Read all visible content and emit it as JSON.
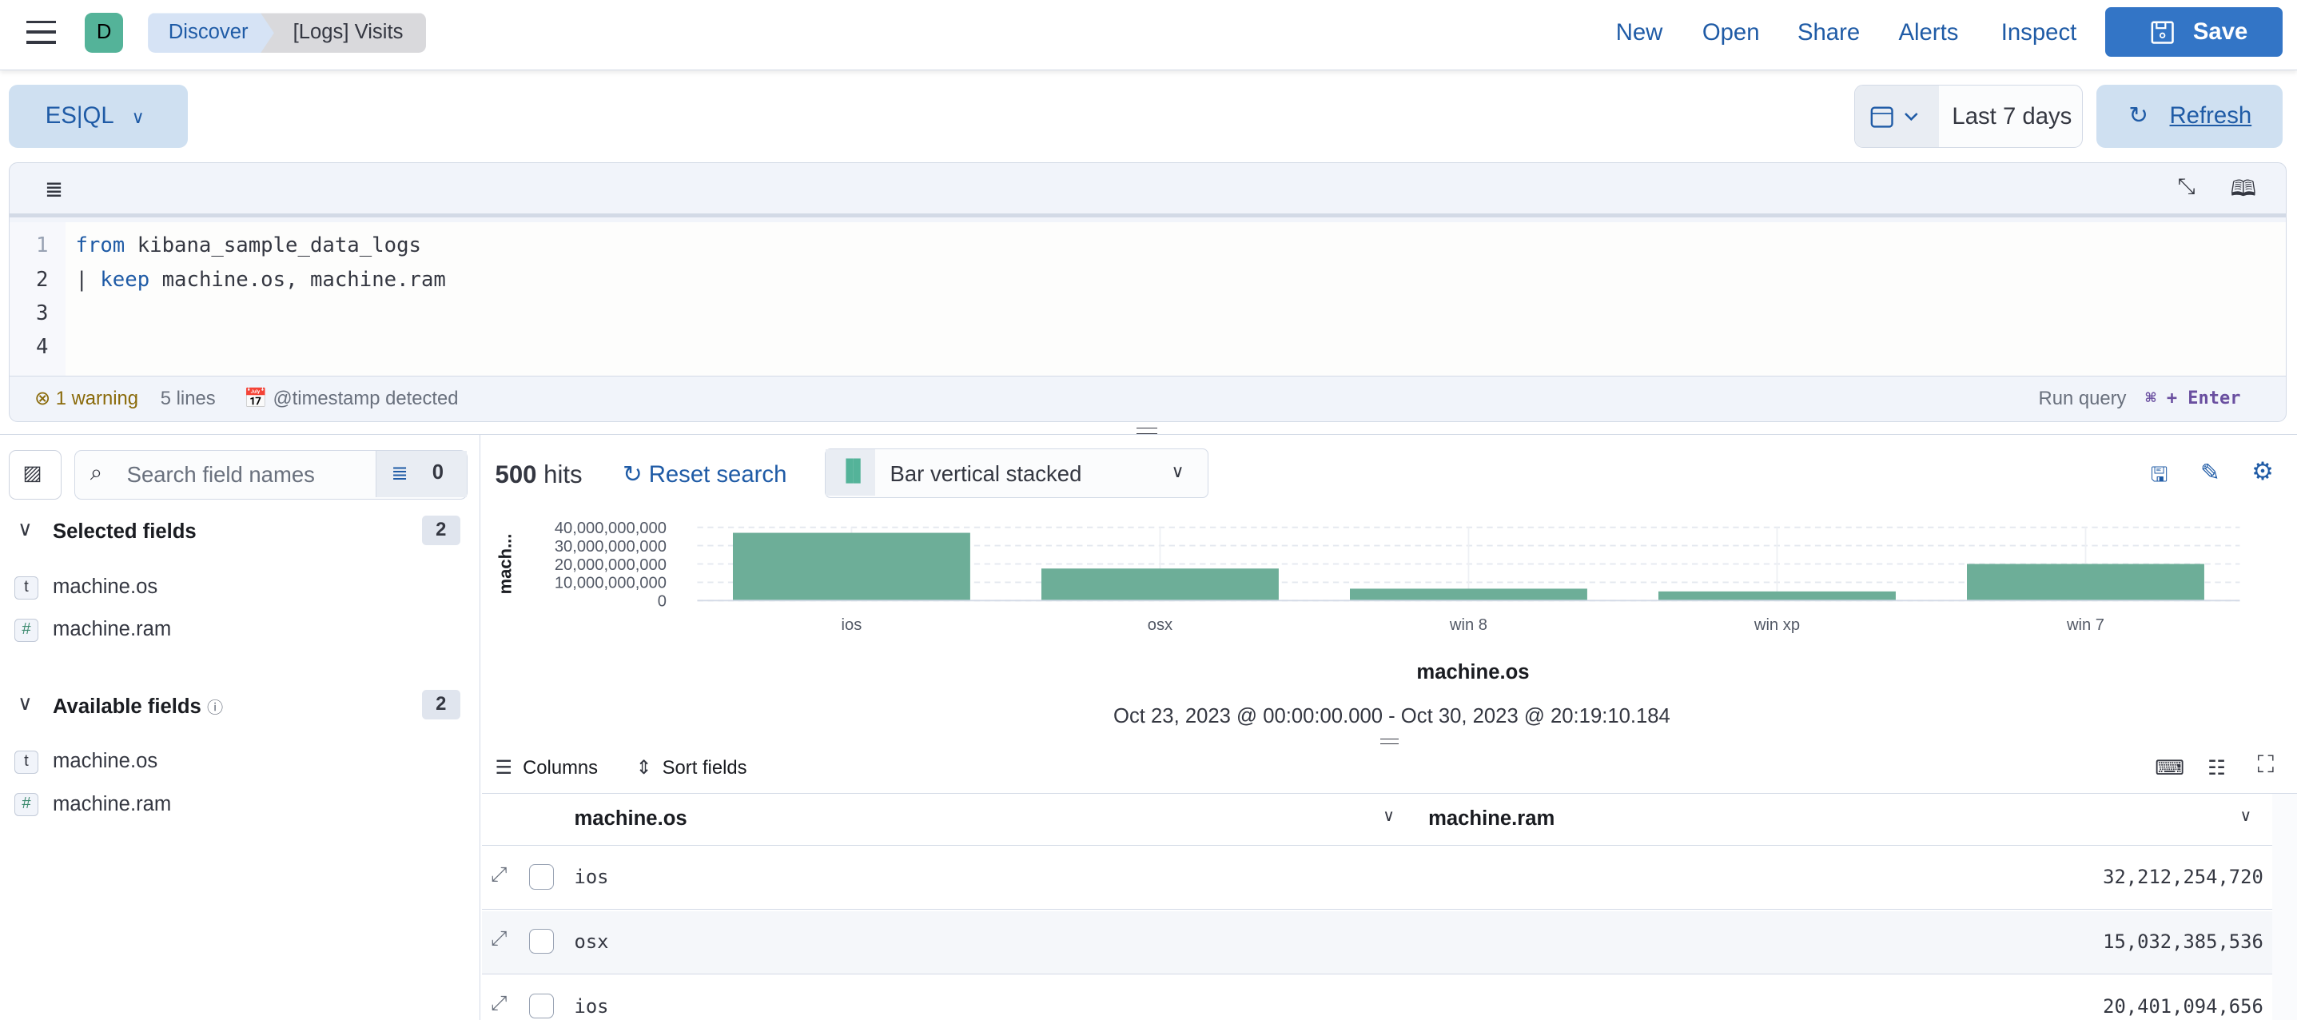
{
  "header": {
    "avatar_letter": "D",
    "breadcrumbs": [
      "Discover",
      "[Logs] Visits"
    ],
    "links": [
      "New",
      "Open",
      "Share",
      "Alerts",
      "Inspect"
    ],
    "save_label": "Save"
  },
  "query_bar": {
    "language": "ES|QL",
    "date_range": "Last 7 days",
    "refresh_label": "Refresh"
  },
  "editor": {
    "lines": [
      {
        "num": "1",
        "kw": "from",
        "rest": " kibana_sample_data_logs"
      },
      {
        "num": "2",
        "kw": "keep",
        "prefix": "| ",
        "rest": " machine.os, machine.ram"
      },
      {
        "num": "3"
      },
      {
        "num": "4"
      }
    ],
    "warning": "1 warning",
    "line_count": "5 lines",
    "timestamp": "@timestamp detected",
    "run_query": "Run query",
    "shortcut": "⌘ + Enter"
  },
  "sidebar": {
    "search_placeholder": "Search field names",
    "filter_count": "0",
    "selected": {
      "title": "Selected fields",
      "count": "2",
      "fields": [
        {
          "type": "t",
          "name": "machine.os"
        },
        {
          "type": "#",
          "name": "machine.ram"
        }
      ]
    },
    "available": {
      "title": "Available fields",
      "count": "2",
      "fields": [
        {
          "type": "t",
          "name": "machine.os"
        },
        {
          "type": "#",
          "name": "machine.ram"
        }
      ]
    }
  },
  "results": {
    "hits_count": "500",
    "hits_label": "hits",
    "reset_label": "Reset search",
    "chart_type": "Bar vertical stacked",
    "time_range": "Oct 23, 2023 @ 00:00:00.000 - Oct 30, 2023 @ 20:19:10.184"
  },
  "chart_data": {
    "type": "bar",
    "categories": [
      "ios",
      "osx",
      "win 8",
      "win xp",
      "win 7"
    ],
    "values": [
      37000000000,
      17500000000,
      6500000000,
      5000000000,
      20000000000
    ],
    "xlabel": "machine.os",
    "ylabel": "mach...",
    "ylim": [
      0,
      40000000000
    ],
    "yticks": [
      "0",
      "10,000,000,000",
      "20,000,000,000",
      "30,000,000,000",
      "40,000,000,000"
    ],
    "grid": true,
    "color": "#6dae98"
  },
  "table": {
    "columns_label": "Columns",
    "sort_label": "Sort fields",
    "headers": [
      "machine.os",
      "machine.ram"
    ],
    "rows": [
      {
        "os": "ios",
        "ram": "32,212,254,720"
      },
      {
        "os": "osx",
        "ram": "15,032,385,536"
      },
      {
        "os": "ios",
        "ram": "20,401,094,656"
      }
    ]
  }
}
